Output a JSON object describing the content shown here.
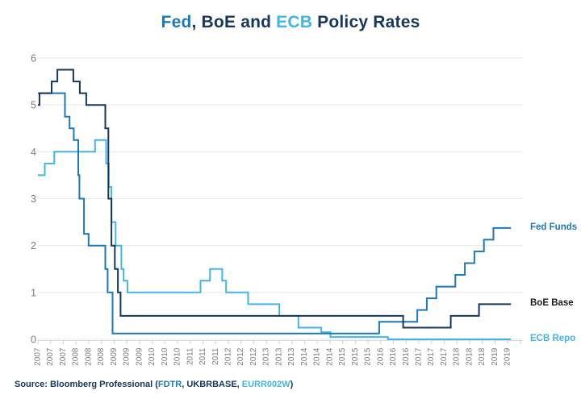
{
  "colors": {
    "fed_blue": "#1b78ba",
    "boe_navy": "#17365d",
    "boe_label_dark": "#1a1a1a",
    "ecb_light_blue": "#41b6e6",
    "title_dark": "#16365c",
    "gridline": "#e8e8e8",
    "axis_line": "#dedede",
    "tick_mark": "#cfcfcf",
    "axis_text": "#7c7c7c",
    "background": "#ffffff"
  },
  "chart_data": {
    "type": "line",
    "step": true,
    "title": "Fed, BoE and ECB Policy Rates",
    "title_parts": [
      {
        "text": "Fed",
        "color": "#1b78ba"
      },
      {
        "text": ", BoE and ",
        "color": "#16365c"
      },
      {
        "text": "ECB",
        "color": "#41b6e6"
      },
      {
        "text": " Policy Rates",
        "color": "#16365c"
      }
    ],
    "xlabel": "",
    "ylabel": "",
    "xlim": [
      2007.0,
      2019.83
    ],
    "ylim": [
      0,
      6
    ],
    "grid": "horizontal",
    "legend_position": "right-outside",
    "x_end_year": 2019.42,
    "y_ticks": [
      {
        "value": 0,
        "label": "0"
      },
      {
        "value": 1,
        "label": "1"
      },
      {
        "value": 2,
        "label": "2"
      },
      {
        "value": 3,
        "label": "3"
      },
      {
        "value": 4,
        "label": "4"
      },
      {
        "value": 5,
        "label": "5"
      },
      {
        "value": 6,
        "label": "6"
      }
    ],
    "x_tick_interval_months": 4,
    "x_tick_labels": [
      "2007",
      "2007",
      "2007",
      "2008",
      "2008",
      "2008",
      "2009",
      "2009",
      "2009",
      "2010",
      "2010",
      "2010",
      "2011",
      "2011",
      "2011",
      "2012",
      "2012",
      "2012",
      "2013",
      "2013",
      "2013",
      "2014",
      "2014",
      "2014",
      "2015",
      "2015",
      "2015",
      "2016",
      "2016",
      "2016",
      "2017",
      "2017",
      "2017",
      "2018",
      "2018",
      "2018",
      "2019",
      "2019"
    ],
    "series": [
      {
        "name": "Fed Funds",
        "color": "#1b78ba",
        "label_color": "#1b78ba",
        "points": [
          [
            2007.0,
            5.25
          ],
          [
            2007.71,
            4.75
          ],
          [
            2007.83,
            4.5
          ],
          [
            2007.94,
            4.25
          ],
          [
            2008.06,
            3.5
          ],
          [
            2008.09,
            3.0
          ],
          [
            2008.21,
            2.25
          ],
          [
            2008.33,
            2.0
          ],
          [
            2008.77,
            1.5
          ],
          [
            2008.83,
            1.0
          ],
          [
            2008.96,
            0.125
          ],
          [
            2015.96,
            0.375
          ],
          [
            2016.96,
            0.625
          ],
          [
            2017.21,
            0.875
          ],
          [
            2017.46,
            1.125
          ],
          [
            2017.96,
            1.375
          ],
          [
            2018.21,
            1.625
          ],
          [
            2018.46,
            1.875
          ],
          [
            2018.71,
            2.125
          ],
          [
            2018.96,
            2.375
          ]
        ]
      },
      {
        "name": "BoE Base",
        "color": "#17365d",
        "label_color": "#1a1a1a",
        "points": [
          [
            2007.0,
            5.0
          ],
          [
            2007.04,
            5.25
          ],
          [
            2007.36,
            5.5
          ],
          [
            2007.51,
            5.75
          ],
          [
            2007.93,
            5.5
          ],
          [
            2008.1,
            5.25
          ],
          [
            2008.27,
            5.0
          ],
          [
            2008.77,
            4.5
          ],
          [
            2008.85,
            3.0
          ],
          [
            2008.93,
            2.0
          ],
          [
            2009.02,
            1.5
          ],
          [
            2009.1,
            1.0
          ],
          [
            2009.17,
            0.5
          ],
          [
            2016.59,
            0.25
          ],
          [
            2017.84,
            0.5
          ],
          [
            2018.58,
            0.75
          ]
        ]
      },
      {
        "name": "ECB Repo",
        "color": "#41b6e6",
        "label_color": "#41b6e6",
        "points": [
          [
            2007.0,
            3.5
          ],
          [
            2007.18,
            3.75
          ],
          [
            2007.43,
            4.0
          ],
          [
            2008.5,
            4.25
          ],
          [
            2008.79,
            3.75
          ],
          [
            2008.86,
            3.25
          ],
          [
            2008.93,
            2.5
          ],
          [
            2009.04,
            2.0
          ],
          [
            2009.19,
            1.5
          ],
          [
            2009.25,
            1.25
          ],
          [
            2009.35,
            1.0
          ],
          [
            2011.27,
            1.25
          ],
          [
            2011.52,
            1.5
          ],
          [
            2011.84,
            1.25
          ],
          [
            2011.94,
            1.0
          ],
          [
            2012.52,
            0.75
          ],
          [
            2013.34,
            0.5
          ],
          [
            2013.84,
            0.25
          ],
          [
            2014.44,
            0.15
          ],
          [
            2014.68,
            0.05
          ],
          [
            2016.19,
            0.0
          ]
        ]
      }
    ]
  },
  "source": {
    "parts": [
      {
        "text": "Source: Bloomberg Professional (",
        "color": "#16365c"
      },
      {
        "text": "FDTR",
        "color": "#1b78ba"
      },
      {
        "text": ", UKBRBASE, ",
        "color": "#16365c"
      },
      {
        "text": "EURR002W",
        "color": "#41b6e6"
      },
      {
        "text": ")",
        "color": "#16365c"
      }
    ]
  }
}
